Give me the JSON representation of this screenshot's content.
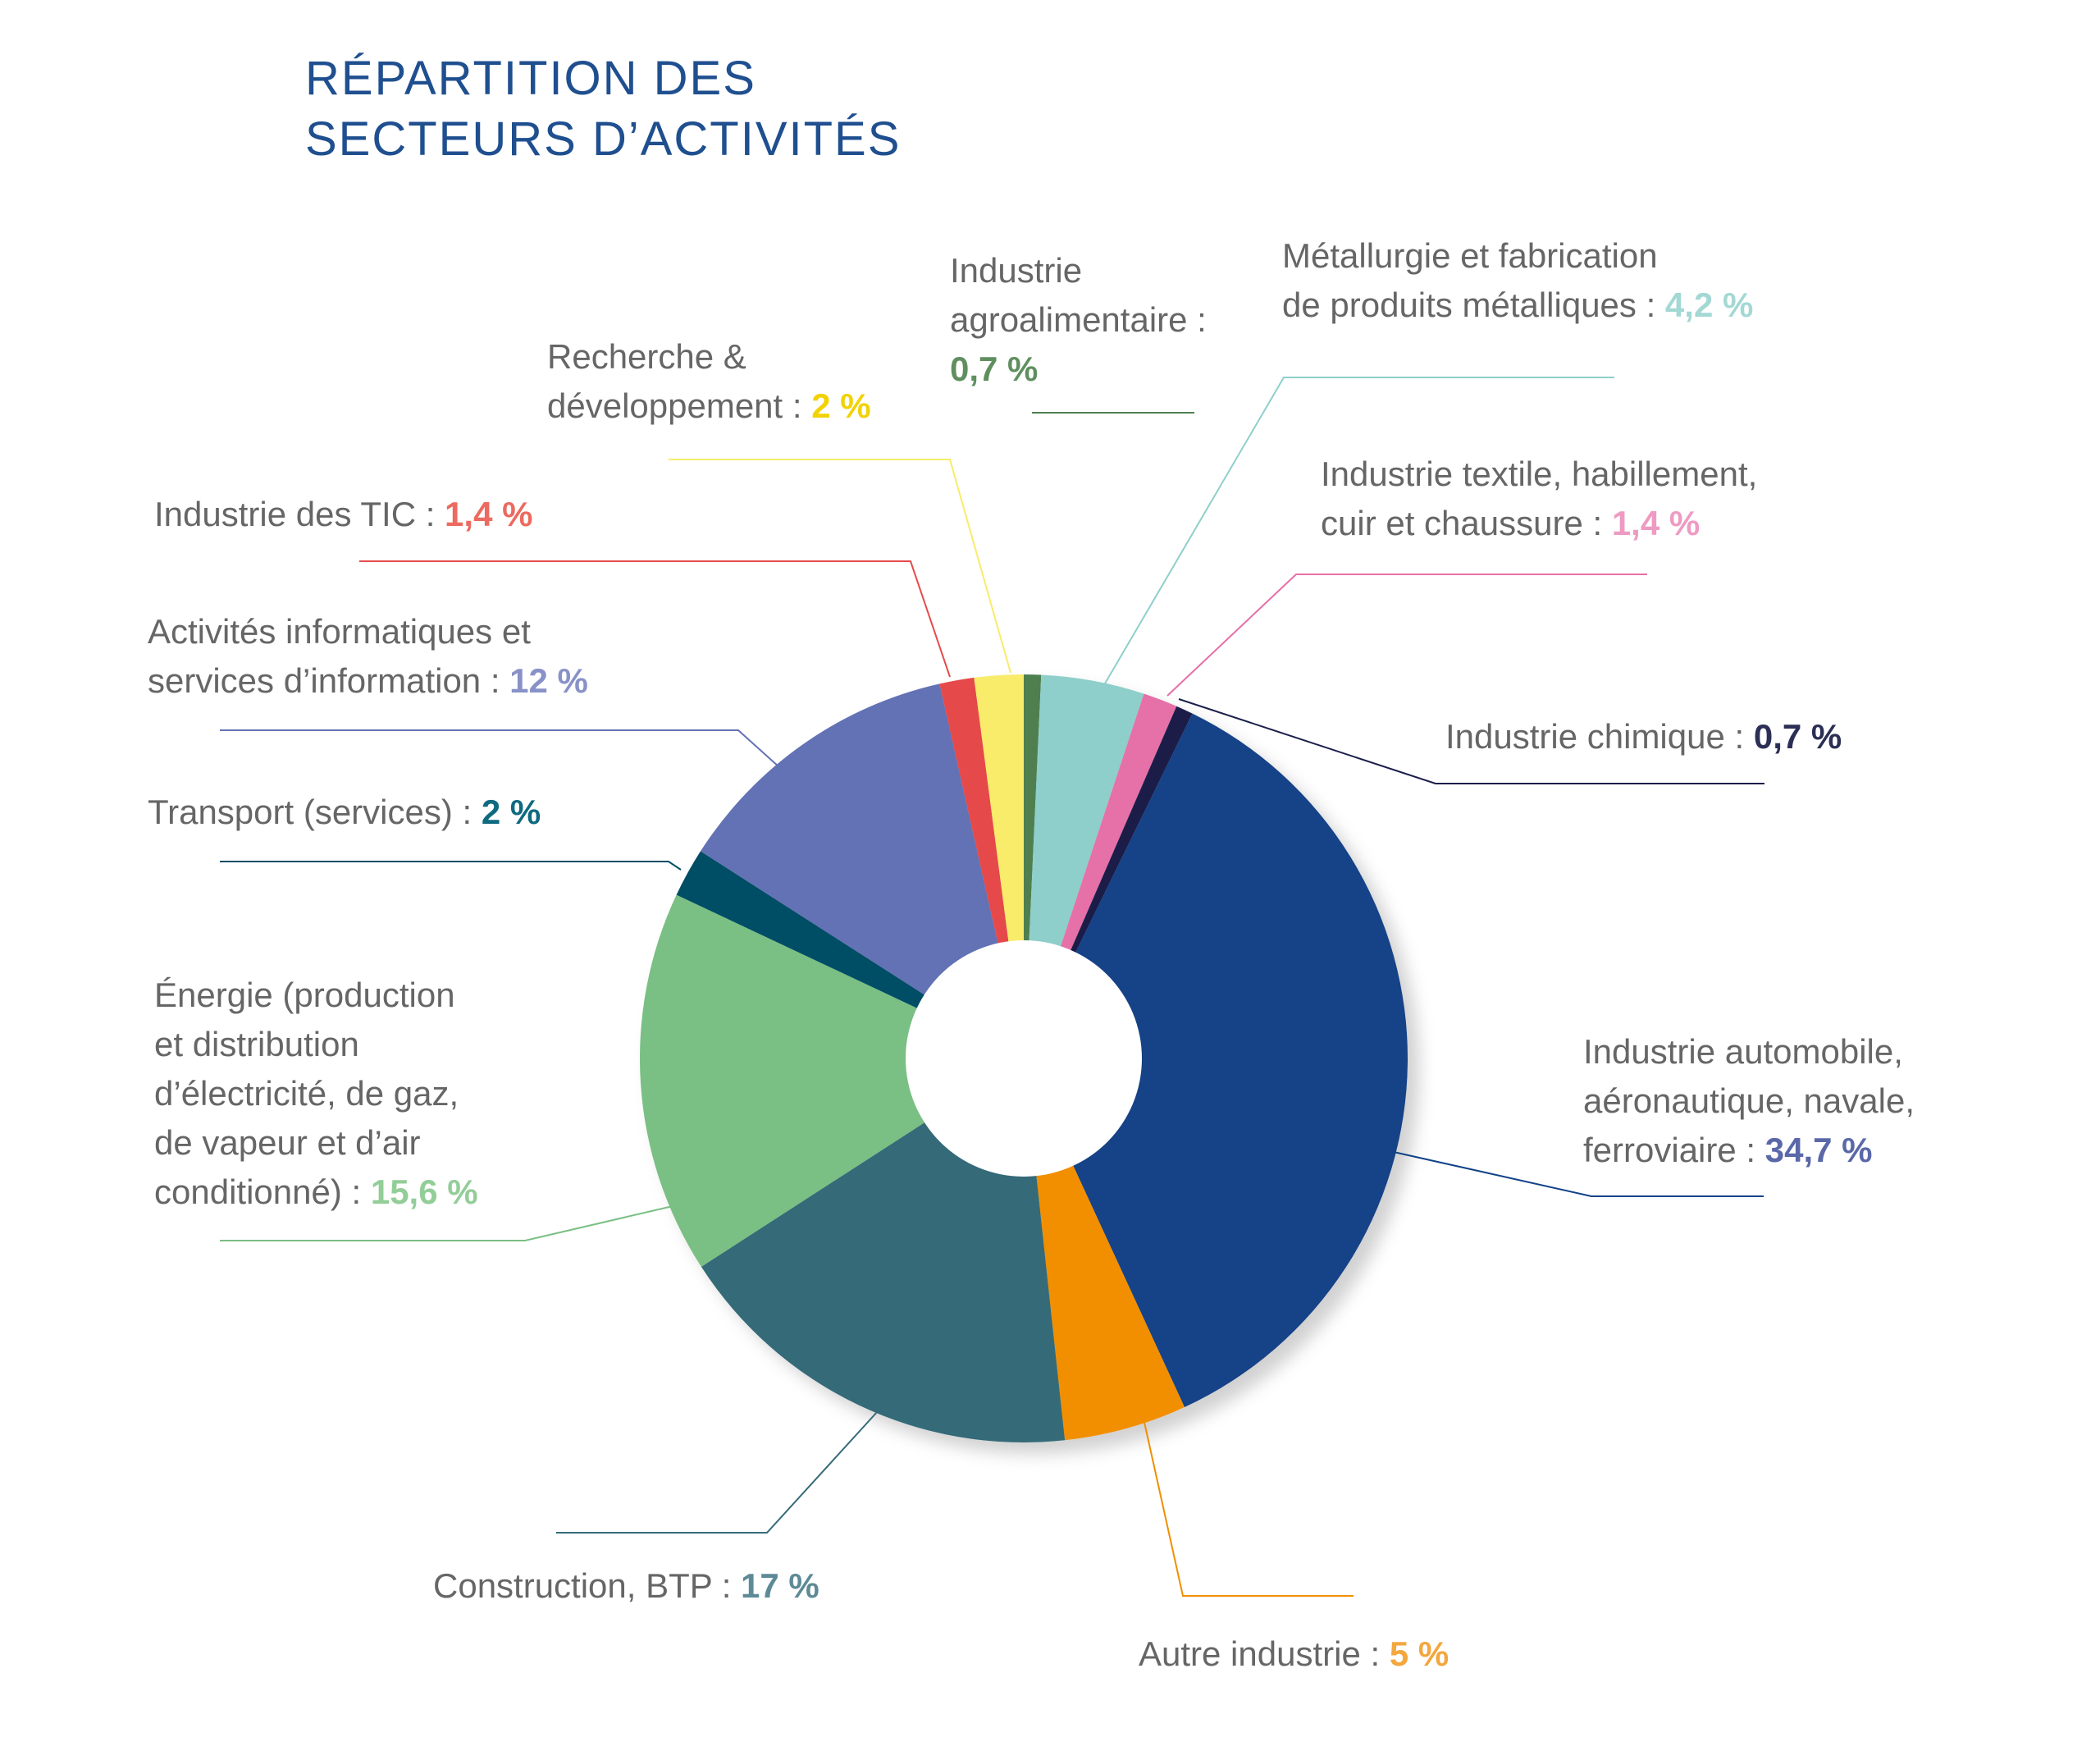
{
  "chart_data": {
    "type": "pie",
    "title_lines": [
      "RÉPARTITION DES",
      "SECTEURS D’ACTIVITÉS"
    ],
    "slices": [
      {
        "lines": [
          "Industrie",
          "agroalimentaire :"
        ],
        "value_text": "0,7 %",
        "value": 0.7,
        "color": "#4f7f4f",
        "value_color": "#5f8f5f"
      },
      {
        "lines": [
          "Métallurgie et fabrication",
          "de produits métalliques : "
        ],
        "value_text": "4,2 %",
        "value": 4.2,
        "color": "#8ecfcb",
        "value_color": "#a3d8d4"
      },
      {
        "lines": [
          "Industrie textile, habillement,",
          "cuir et chaussure : "
        ],
        "value_text": "1,4 %",
        "value": 1.4,
        "color": "#e66fa8",
        "value_color": "#ee9bc3"
      },
      {
        "lines": [
          "Industrie chimique : "
        ],
        "value_text": "0,7 %",
        "value": 0.7,
        "color": "#1b1f4a",
        "value_color": "#2b2f55"
      },
      {
        "lines": [
          "Industrie automobile,",
          "aéronautique, navale,",
          "ferroviaire : "
        ],
        "value_text": "34,7 %",
        "value": 34.7,
        "color": "#124287",
        "value_color": "#5a68a8"
      },
      {
        "lines": [
          "Autre industrie : "
        ],
        "value_text": "5 %",
        "value": 5,
        "color": "#f18f00",
        "value_color": "#f3a73e"
      },
      {
        "lines": [
          "Construction, BTP : "
        ],
        "value_text": "17 %",
        "value": 17,
        "color": "#346a78",
        "value_color": "#5d8a96"
      },
      {
        "lines": [
          "Énergie (production",
          "et distribution",
          "d’électricité, de gaz,",
          "de vapeur et d’air",
          "conditionné) : "
        ],
        "value_text": "15,6 %",
        "value": 15.6,
        "color": "#7abf83",
        "value_color": "#93cd98"
      },
      {
        "lines": [
          "Transport (services) : "
        ],
        "value_text": "2 %",
        "value": 2,
        "color": "#004e66",
        "value_color": "#0f6a80"
      },
      {
        "lines": [
          "Activités informatiques et",
          "services d’information : "
        ],
        "value_text": "12 %",
        "value": 12,
        "color": "#6471b5",
        "value_color": "#8892c8"
      },
      {
        "lines": [
          "Industrie des TIC : "
        ],
        "value_text": "1,4 %",
        "value": 1.4,
        "color": "#e64a4a",
        "value_color": "#ec6a5f"
      },
      {
        "lines": [
          "Recherche &",
          "développement : "
        ],
        "value_text": "2 %",
        "value": 2,
        "color": "#f8ec6a",
        "value_color": "#f2d200"
      }
    ]
  }
}
